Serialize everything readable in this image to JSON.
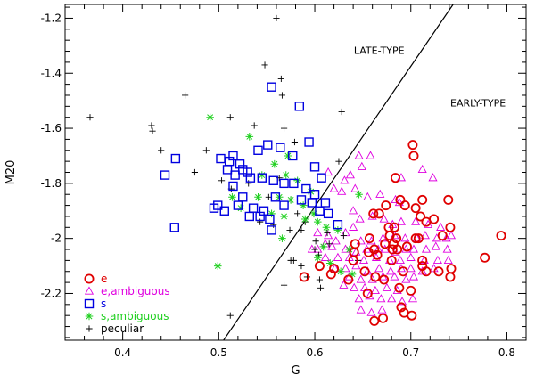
{
  "chart_data": {
    "type": "scatter",
    "xlabel": "G",
    "ylabel": "M20",
    "xlim": [
      0.34,
      0.82
    ],
    "ylim": [
      -2.37,
      -1.15
    ],
    "xticks": [
      {
        "value": 0.4,
        "label": "0.4"
      },
      {
        "value": 0.5,
        "label": "0.5"
      },
      {
        "value": 0.6,
        "label": "0.6"
      },
      {
        "value": 0.7,
        "label": "0.7"
      },
      {
        "value": 0.8,
        "label": "0.8"
      }
    ],
    "yticks": [
      {
        "value": -1.2,
        "label": "-1.2"
      },
      {
        "value": -1.4,
        "label": "-1.4"
      },
      {
        "value": -1.6,
        "label": "-1.6"
      },
      {
        "value": -1.8,
        "label": "-1.8"
      },
      {
        "value": -2.0,
        "label": "-2"
      },
      {
        "value": -2.2,
        "label": "-2.2"
      }
    ],
    "divider_line": {
      "x": [
        0.505,
        0.744
      ],
      "y": [
        -2.37,
        -1.15
      ]
    },
    "annotations": [
      {
        "text": "LATE-TYPE",
        "x": 0.667,
        "y": -1.33
      },
      {
        "text": "EARLY-TYPE",
        "x": 0.77,
        "y": -1.52
      }
    ],
    "series": [
      {
        "name": "e",
        "marker": "circle",
        "color": "#e00000",
        "x": [
          0.702,
          0.703,
          0.684,
          0.694,
          0.712,
          0.739,
          0.716,
          0.741,
          0.741,
          0.712,
          0.708,
          0.705,
          0.71,
          0.724,
          0.733,
          0.689,
          0.674,
          0.667,
          0.642,
          0.677,
          0.678,
          0.662,
          0.665,
          0.673,
          0.68,
          0.683,
          0.696,
          0.692,
          0.641,
          0.652,
          0.656,
          0.663,
          0.672,
          0.655,
          0.635,
          0.617,
          0.589,
          0.605,
          0.62,
          0.64,
          0.661,
          0.685,
          0.657,
          0.681,
          0.686,
          0.688,
          0.69,
          0.705,
          0.712,
          0.716,
          0.729,
          0.742,
          0.777,
          0.794,
          0.7,
          0.701,
          0.693,
          0.662,
          0.671,
          0.682
        ],
        "y": [
          -1.66,
          -1.7,
          -1.78,
          -1.88,
          -1.86,
          -1.86,
          -1.94,
          -1.96,
          -2.14,
          -2.1,
          -2.0,
          -1.89,
          -1.92,
          -1.93,
          -1.99,
          -1.86,
          -1.88,
          -1.91,
          -2.02,
          -1.96,
          -1.99,
          -2.04,
          -2.06,
          -2.02,
          -2.08,
          -1.96,
          -2.03,
          -2.12,
          -2.05,
          -2.12,
          -2.05,
          -2.14,
          -2.15,
          -2.2,
          -2.15,
          -2.13,
          -2.14,
          -2.1,
          -2.11,
          -2.08,
          -1.91,
          -2.0,
          -2.0,
          -2.04,
          -2.04,
          -2.18,
          -2.25,
          -2.0,
          -2.08,
          -2.12,
          -2.12,
          -2.11,
          -2.07,
          -1.99,
          -2.19,
          -2.28,
          -2.27,
          -2.3,
          -2.29,
          -2.02
        ]
      },
      {
        "name": "e,ambiguous",
        "marker": "triangle",
        "color": "#e000e0",
        "x": [
          0.646,
          0.658,
          0.649,
          0.637,
          0.631,
          0.62,
          0.614,
          0.628,
          0.642,
          0.655,
          0.668,
          0.684,
          0.688,
          0.69,
          0.712,
          0.723,
          0.64,
          0.647,
          0.66,
          0.672,
          0.681,
          0.69,
          0.705,
          0.718,
          0.731,
          0.64,
          0.632,
          0.614,
          0.603,
          0.611,
          0.622,
          0.648,
          0.659,
          0.671,
          0.683,
          0.694,
          0.706,
          0.715,
          0.727,
          0.737,
          0.742,
          0.603,
          0.618,
          0.632,
          0.643,
          0.654,
          0.666,
          0.673,
          0.684,
          0.695,
          0.703,
          0.716,
          0.726,
          0.738,
          0.611,
          0.624,
          0.636,
          0.651,
          0.664,
          0.678,
          0.689,
          0.7,
          0.714,
          0.728,
          0.739,
          0.621,
          0.632,
          0.643,
          0.655,
          0.667,
          0.679,
          0.69,
          0.7,
          0.712,
          0.724,
          0.636,
          0.648,
          0.66,
          0.671,
          0.683,
          0.695,
          0.703,
          0.63,
          0.641,
          0.652,
          0.663,
          0.675,
          0.686,
          0.597,
          0.646,
          0.657,
          0.669,
          0.68,
          0.691,
          0.702,
          0.648,
          0.659,
          0.67
        ],
        "y": [
          -1.7,
          -1.7,
          -1.74,
          -1.77,
          -1.79,
          -1.82,
          -1.76,
          -1.83,
          -1.82,
          -1.85,
          -1.84,
          -1.86,
          -1.87,
          -1.78,
          -1.75,
          -1.78,
          -1.9,
          -1.93,
          -1.92,
          -1.93,
          -1.95,
          -1.94,
          -1.94,
          -1.95,
          -1.96,
          -1.96,
          -1.98,
          -1.99,
          -1.98,
          -2.02,
          -2.01,
          -2.01,
          -2.01,
          -2.0,
          -1.99,
          -2.0,
          -2.0,
          -1.99,
          -2.0,
          -2.0,
          -1.99,
          -2.04,
          -2.03,
          -2.04,
          -2.05,
          -2.04,
          -2.04,
          -2.04,
          -2.05,
          -2.04,
          -2.04,
          -2.04,
          -2.03,
          -2.04,
          -2.07,
          -2.07,
          -2.07,
          -2.08,
          -2.07,
          -2.08,
          -2.08,
          -2.07,
          -2.08,
          -2.08,
          -2.08,
          -2.11,
          -2.11,
          -2.1,
          -2.12,
          -2.11,
          -2.12,
          -2.11,
          -2.11,
          -2.12,
          -2.11,
          -2.14,
          -2.15,
          -2.15,
          -2.14,
          -2.14,
          -2.15,
          -2.14,
          -2.17,
          -2.18,
          -2.18,
          -2.19,
          -2.18,
          -2.19,
          -2.04,
          -2.22,
          -2.21,
          -2.22,
          -2.22,
          -2.23,
          -2.22,
          -2.26,
          -2.27,
          -2.26
        ]
      },
      {
        "name": "s",
        "marker": "square",
        "color": "#0000e0",
        "x": [
          0.555,
          0.584,
          0.444,
          0.455,
          0.502,
          0.511,
          0.515,
          0.522,
          0.53,
          0.541,
          0.551,
          0.564,
          0.577,
          0.594,
          0.6,
          0.607,
          0.611,
          0.509,
          0.517,
          0.525,
          0.533,
          0.545,
          0.557,
          0.568,
          0.578,
          0.591,
          0.499,
          0.506,
          0.515,
          0.525,
          0.536,
          0.547,
          0.559,
          0.568,
          0.586,
          0.597,
          0.52,
          0.532,
          0.543,
          0.553,
          0.495,
          0.555,
          0.454,
          0.6,
          0.605,
          0.614,
          0.624
        ],
        "y": [
          -1.45,
          -1.52,
          -1.77,
          -1.71,
          -1.71,
          -1.72,
          -1.7,
          -1.73,
          -1.76,
          -1.68,
          -1.66,
          -1.67,
          -1.7,
          -1.65,
          -1.74,
          -1.78,
          -1.87,
          -1.75,
          -1.77,
          -1.75,
          -1.78,
          -1.78,
          -1.79,
          -1.8,
          -1.8,
          -1.82,
          -1.88,
          -1.9,
          -1.81,
          -1.85,
          -1.89,
          -1.9,
          -1.85,
          -1.88,
          -1.86,
          -1.87,
          -1.88,
          -1.92,
          -1.92,
          -1.93,
          -1.89,
          -1.97,
          -1.96,
          -1.84,
          -1.9,
          -1.91,
          -1.95
        ]
      },
      {
        "name": "s,ambiguous",
        "marker": "asterisk",
        "color": "#20d020",
        "x": [
          0.491,
          0.532,
          0.572,
          0.558,
          0.545,
          0.57,
          0.582,
          0.596,
          0.514,
          0.541,
          0.563,
          0.575,
          0.588,
          0.599,
          0.523,
          0.555,
          0.568,
          0.59,
          0.603,
          0.612,
          0.624,
          0.499,
          0.566,
          0.609,
          0.636,
          0.603,
          0.616,
          0.627,
          0.639,
          0.646
        ],
        "y": [
          -1.56,
          -1.63,
          -1.7,
          -1.73,
          -1.77,
          -1.77,
          -1.79,
          -1.83,
          -1.85,
          -1.85,
          -1.85,
          -1.86,
          -1.88,
          -1.91,
          -1.89,
          -1.91,
          -1.92,
          -1.93,
          -1.94,
          -1.96,
          -1.97,
          -2.1,
          -2.0,
          -2.03,
          -2.04,
          -2.07,
          -2.09,
          -2.12,
          -2.13,
          -1.84
        ]
      },
      {
        "name": "peculiar",
        "marker": "plus",
        "color": "#000000",
        "x": [
          0.56,
          0.565,
          0.548,
          0.566,
          0.628,
          0.366,
          0.43,
          0.431,
          0.44,
          0.465,
          0.475,
          0.512,
          0.537,
          0.568,
          0.579,
          0.487,
          0.503,
          0.513,
          0.552,
          0.563,
          0.575,
          0.582,
          0.531,
          0.543,
          0.557,
          0.574,
          0.586,
          0.59,
          0.601,
          0.613,
          0.586,
          0.604,
          0.568,
          0.578,
          0.592,
          0.606,
          0.575,
          0.6,
          0.512,
          0.615,
          0.63,
          0.645,
          0.605,
          0.625
        ],
        "y": [
          -1.2,
          -1.42,
          -1.37,
          -1.48,
          -1.54,
          -1.56,
          -1.59,
          -1.61,
          -1.68,
          -1.48,
          -1.76,
          -1.56,
          -1.59,
          -1.6,
          -1.65,
          -1.68,
          -1.79,
          -1.82,
          -1.85,
          -1.78,
          -1.86,
          -1.91,
          -1.8,
          -1.94,
          -1.95,
          -1.97,
          -1.97,
          -1.94,
          -2.01,
          -1.98,
          -2.1,
          -2.06,
          -2.17,
          -2.08,
          -2.14,
          -2.18,
          -2.08,
          -2.04,
          -2.28,
          -2.02,
          -1.99,
          -2.08,
          -2.15,
          -1.72
        ]
      }
    ]
  },
  "legend": {
    "items": [
      {
        "label": "e",
        "marker": "circle",
        "color": "#e00000"
      },
      {
        "label": "e,ambiguous",
        "marker": "triangle",
        "color": "#e000e0"
      },
      {
        "label": "s",
        "marker": "square",
        "color": "#0000e0"
      },
      {
        "label": "s,ambiguous",
        "marker": "asterisk",
        "color": "#20d020"
      },
      {
        "label": "peculiar",
        "marker": "plus",
        "color": "#000000"
      }
    ]
  }
}
